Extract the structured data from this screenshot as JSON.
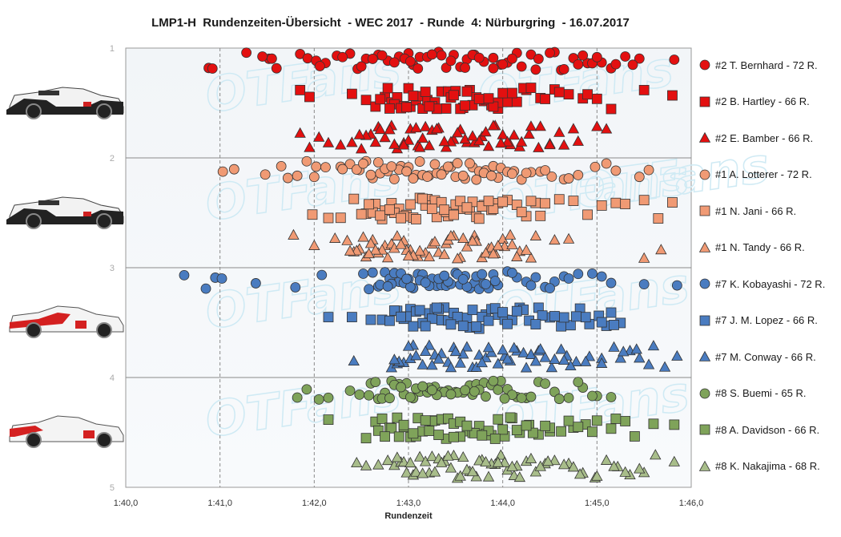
{
  "chart_data": {
    "type": "scatter",
    "title": "LMP1-H  Rundenzeiten-Übersicht  - WEC 2017  - Runde  4: Nürburgring  - 16.07.2017",
    "xlabel": "Rundenzeit",
    "x_ticks": [
      "1:40,0",
      "1:41,0",
      "1:42,0",
      "1:43,0",
      "1:44,0",
      "1:45,0",
      "1:46,0"
    ],
    "xlim_seconds": [
      100,
      106
    ],
    "y_ticks": [
      "1",
      "2",
      "3",
      "4",
      "5"
    ],
    "ylim": [
      1,
      5
    ],
    "grid": "vertical dashed at each second, horizontal solid at each car band",
    "legend_position": "right",
    "watermark": "OTFans",
    "series": [
      {
        "name": "#2 T. Bernhard - 72 R.",
        "car": 2,
        "band_row": 0,
        "marker": "circle",
        "color": "#e31010",
        "laps_seconds": [
          100.88,
          100.92,
          101.28,
          101.52,
          101.6,
          101.85,
          101.93,
          102.02,
          102.12,
          102.24,
          102.38,
          102.46,
          102.55,
          102.68,
          102.78,
          102.9,
          103.0,
          103.05,
          103.12,
          103.2,
          103.32,
          103.4,
          103.48,
          103.55,
          103.62,
          103.7,
          103.8,
          103.9,
          103.98,
          104.05,
          104.15,
          104.3,
          104.38,
          104.55,
          104.62,
          104.75,
          104.9,
          105.05,
          105.15,
          105.3,
          105.45,
          105.82,
          101.55,
          102.06,
          102.62,
          102.96,
          103.35,
          103.68,
          104.0,
          104.5,
          104.85,
          105.38,
          102.5,
          103.1,
          103.6,
          104.2,
          104.8,
          102.85,
          103.45,
          104.35,
          101.45,
          102.3,
          103.25,
          103.75,
          104.95,
          105.2,
          102.72,
          103.9,
          104.65,
          105.0,
          103.02,
          104.1
        ]
      },
      {
        "name": "#2 B. Hartley - 66 R.",
        "car": 2,
        "band_row": 1,
        "marker": "square",
        "color": "#e31010",
        "laps_seconds": [
          101.85,
          101.95,
          102.4,
          102.55,
          102.65,
          102.75,
          102.82,
          102.88,
          102.95,
          103.02,
          103.08,
          103.15,
          103.2,
          103.28,
          103.35,
          103.42,
          103.5,
          103.58,
          103.65,
          103.72,
          103.8,
          103.88,
          103.95,
          104.05,
          104.15,
          104.25,
          104.4,
          104.55,
          104.7,
          104.85,
          105.0,
          105.15,
          105.5,
          105.8,
          102.7,
          102.85,
          103.0,
          103.1,
          103.25,
          103.4,
          103.55,
          103.68,
          103.82,
          103.95,
          104.22,
          104.6,
          102.8,
          102.92,
          103.05,
          103.18,
          103.3,
          103.45,
          103.6,
          103.75,
          103.9,
          104.1,
          104.3,
          102.78,
          102.98,
          103.22,
          103.48,
          103.62,
          103.85,
          104.0,
          104.45,
          104.9
        ]
      },
      {
        "name": "#2 E. Bamber - 66 R.",
        "car": 2,
        "band_row": 2,
        "marker": "triangle",
        "color": "#e31010",
        "laps_seconds": [
          101.85,
          101.95,
          102.05,
          102.15,
          102.28,
          102.4,
          102.5,
          102.6,
          102.68,
          102.75,
          102.82,
          102.88,
          102.95,
          103.02,
          103.1,
          103.18,
          103.25,
          103.32,
          103.4,
          103.48,
          103.55,
          103.62,
          103.7,
          103.78,
          103.85,
          103.92,
          104.0,
          104.08,
          104.18,
          104.28,
          104.38,
          104.5,
          104.65,
          104.8,
          105.0,
          105.1,
          102.55,
          102.7,
          102.85,
          103.0,
          103.15,
          103.3,
          103.45,
          103.6,
          103.75,
          103.9,
          104.05,
          104.2,
          104.4,
          104.6,
          102.65,
          102.8,
          102.95,
          103.08,
          103.22,
          103.38,
          103.52,
          103.68,
          103.82,
          103.98,
          104.12,
          104.3,
          104.5,
          104.75,
          102.48,
          103.12
        ]
      },
      {
        "name": "#1 A. Lotterer - 72 R.",
        "car": 1,
        "band_row": 0,
        "marker": "circle",
        "color": "#f09a74",
        "laps_seconds": [
          101.03,
          101.15,
          101.48,
          101.72,
          101.82,
          101.92,
          102.02,
          102.12,
          102.28,
          102.38,
          102.48,
          102.55,
          102.62,
          102.7,
          102.78,
          102.85,
          102.92,
          103.0,
          103.08,
          103.15,
          103.22,
          103.3,
          103.38,
          103.45,
          103.52,
          103.6,
          103.68,
          103.75,
          103.82,
          103.9,
          103.98,
          104.05,
          104.12,
          104.2,
          104.3,
          104.4,
          104.52,
          104.65,
          104.8,
          104.98,
          105.1,
          105.2,
          105.45,
          105.55,
          101.65,
          102.0,
          102.3,
          102.45,
          102.6,
          102.75,
          102.9,
          103.05,
          103.2,
          103.35,
          103.5,
          103.65,
          103.8,
          103.95,
          104.1,
          104.25,
          104.45,
          104.7,
          102.52,
          102.68,
          102.82,
          102.98,
          103.12,
          103.28,
          103.42,
          103.58,
          103.72,
          103.88
        ]
      },
      {
        "name": "#1 N. Jani - 66 R.",
        "car": 1,
        "band_row": 1,
        "marker": "square",
        "color": "#f09a74",
        "laps_seconds": [
          101.98,
          102.15,
          102.28,
          102.42,
          102.55,
          102.65,
          102.75,
          102.82,
          102.9,
          102.98,
          103.05,
          103.12,
          103.2,
          103.28,
          103.35,
          103.42,
          103.5,
          103.58,
          103.65,
          103.72,
          103.8,
          103.88,
          103.95,
          104.05,
          104.15,
          104.25,
          104.35,
          104.45,
          104.6,
          104.75,
          104.9,
          105.05,
          105.2,
          105.3,
          105.5,
          105.65,
          105.8,
          102.5,
          102.62,
          102.72,
          102.85,
          102.95,
          103.08,
          103.18,
          103.3,
          103.4,
          103.55,
          103.68,
          103.78,
          103.9,
          104.0,
          104.2,
          104.4,
          102.58,
          102.7,
          102.8,
          102.92,
          103.02,
          103.15,
          103.25,
          103.38,
          103.48,
          103.62,
          103.75,
          103.85,
          104.3
        ]
      },
      {
        "name": "#1 N. Tandy - 66 R.",
        "car": 1,
        "band_row": 2,
        "marker": "triangle",
        "color": "#f09a74",
        "laps_seconds": [
          101.78,
          102.0,
          102.22,
          102.35,
          102.42,
          102.48,
          102.55,
          102.62,
          102.68,
          102.75,
          102.82,
          102.88,
          102.95,
          103.02,
          103.1,
          103.18,
          103.25,
          103.32,
          103.4,
          103.48,
          103.55,
          103.62,
          103.7,
          103.78,
          103.85,
          103.92,
          104.0,
          104.08,
          104.18,
          104.35,
          104.55,
          104.7,
          105.5,
          105.68,
          102.45,
          102.6,
          102.72,
          102.85,
          102.98,
          103.12,
          103.28,
          103.42,
          103.58,
          103.72,
          103.88,
          104.02,
          104.15,
          104.3,
          102.52,
          102.65,
          102.78,
          102.92,
          103.05,
          103.22,
          103.38,
          103.52,
          103.68,
          103.82,
          103.95,
          104.1,
          104.25,
          102.38,
          102.58,
          103.0,
          103.45,
          103.9
        ]
      },
      {
        "name": "#7 K. Kobayashi - 72 R.",
        "car": 7,
        "band_row": 0,
        "marker": "circle",
        "color": "#4a7cc0",
        "laps_seconds": [
          100.62,
          100.85,
          100.95,
          101.02,
          101.38,
          101.8,
          102.08,
          102.52,
          102.58,
          102.62,
          102.68,
          102.75,
          102.8,
          102.85,
          102.9,
          102.95,
          103.0,
          103.05,
          103.1,
          103.15,
          103.2,
          103.25,
          103.3,
          103.35,
          103.4,
          103.45,
          103.5,
          103.55,
          103.6,
          103.65,
          103.7,
          103.75,
          103.8,
          103.85,
          103.9,
          103.95,
          104.05,
          104.15,
          104.25,
          104.35,
          104.45,
          104.55,
          104.65,
          104.8,
          104.95,
          105.05,
          105.15,
          105.5,
          105.85,
          102.7,
          102.82,
          102.92,
          103.02,
          103.12,
          103.22,
          103.32,
          103.42,
          103.52,
          103.62,
          103.72,
          103.82,
          103.92,
          104.1,
          104.3,
          104.5,
          104.7,
          102.78,
          102.98,
          103.18,
          103.38,
          103.58,
          103.78
        ]
      },
      {
        "name": "#7 J. M. Lopez - 66 R.",
        "car": 7,
        "band_row": 1,
        "marker": "square",
        "color": "#4a7cc0",
        "laps_seconds": [
          102.15,
          102.4,
          102.6,
          102.72,
          102.8,
          102.88,
          102.95,
          103.02,
          103.08,
          103.15,
          103.22,
          103.28,
          103.35,
          103.42,
          103.48,
          103.55,
          103.62,
          103.68,
          103.75,
          103.82,
          103.88,
          103.95,
          104.02,
          104.1,
          104.18,
          104.28,
          104.38,
          104.5,
          104.62,
          104.72,
          104.82,
          104.92,
          105.02,
          105.15,
          105.25,
          102.85,
          102.98,
          103.12,
          103.25,
          103.38,
          103.52,
          103.65,
          103.78,
          103.92,
          104.05,
          104.22,
          104.42,
          104.65,
          104.88,
          105.1,
          102.92,
          103.05,
          103.18,
          103.32,
          103.45,
          103.58,
          103.72,
          103.85,
          104.0,
          104.15,
          104.35,
          104.55,
          104.78,
          105.05,
          105.18,
          103.3
        ]
      },
      {
        "name": "#7 M. Conway - 66 R.",
        "car": 7,
        "band_row": 2,
        "marker": "triangle",
        "color": "#4a7cc0",
        "laps_seconds": [
          102.42,
          102.82,
          102.88,
          102.95,
          103.02,
          103.08,
          103.15,
          103.22,
          103.28,
          103.35,
          103.42,
          103.48,
          103.55,
          103.62,
          103.68,
          103.75,
          103.82,
          103.88,
          103.95,
          104.02,
          104.08,
          104.15,
          104.22,
          104.3,
          104.38,
          104.45,
          104.52,
          104.62,
          104.68,
          104.78,
          104.92,
          105.05,
          105.18,
          105.25,
          105.35,
          105.45,
          105.55,
          105.72,
          105.85,
          102.9,
          103.05,
          103.18,
          103.32,
          103.45,
          103.58,
          103.72,
          103.85,
          104.0,
          104.12,
          104.25,
          104.4,
          104.55,
          104.72,
          104.88,
          105.05,
          105.28,
          105.42,
          105.6,
          102.85,
          103.0,
          103.25,
          103.5,
          103.78,
          104.05,
          104.35,
          104.65
        ]
      },
      {
        "name": "#8 S. Buemi - 65 R.",
        "car": 8,
        "band_row": 0,
        "marker": "circle",
        "color": "#7fa35a",
        "laps_seconds": [
          101.82,
          101.92,
          102.05,
          102.15,
          102.38,
          102.48,
          102.6,
          102.68,
          102.75,
          102.82,
          102.9,
          102.98,
          103.05,
          103.12,
          103.2,
          103.28,
          103.35,
          103.42,
          103.5,
          103.58,
          103.65,
          103.72,
          103.8,
          103.88,
          103.95,
          104.05,
          104.15,
          104.25,
          104.38,
          104.55,
          104.7,
          104.85,
          105.0,
          105.15,
          102.58,
          102.72,
          102.85,
          102.95,
          103.08,
          103.22,
          103.38,
          103.52,
          103.68,
          103.82,
          103.98,
          104.1,
          104.3,
          104.6,
          104.95,
          102.65,
          102.8,
          102.92,
          103.02,
          103.15,
          103.3,
          103.45,
          103.6,
          103.75,
          103.9,
          104.02,
          104.2,
          104.45,
          104.8,
          103.25,
          103.7
        ]
      },
      {
        "name": "#8 A. Davidson - 66 R.",
        "car": 8,
        "band_row": 1,
        "marker": "square",
        "color": "#7fa35a",
        "laps_seconds": [
          102.15,
          102.55,
          102.65,
          102.72,
          102.8,
          102.88,
          102.95,
          103.02,
          103.08,
          103.15,
          103.22,
          103.28,
          103.35,
          103.42,
          103.48,
          103.55,
          103.62,
          103.68,
          103.75,
          103.82,
          103.88,
          103.95,
          104.02,
          104.1,
          104.18,
          104.28,
          104.38,
          104.5,
          104.62,
          104.75,
          104.88,
          105.0,
          105.15,
          105.3,
          105.6,
          105.82,
          102.68,
          102.82,
          102.95,
          103.1,
          103.25,
          103.4,
          103.55,
          103.7,
          103.85,
          104.0,
          104.15,
          104.32,
          104.5,
          104.7,
          104.95,
          105.2,
          102.75,
          102.9,
          103.05,
          103.18,
          103.32,
          103.48,
          103.62,
          103.78,
          103.92,
          104.08,
          104.25,
          104.45,
          104.8,
          105.4
        ]
      },
      {
        "name": "#8 K. Nakajima - 68 R.",
        "car": 8,
        "band_row": 2,
        "marker": "triangle",
        "color": "#a8bd8a",
        "laps_seconds": [
          102.45,
          102.55,
          102.68,
          102.78,
          102.85,
          102.92,
          102.98,
          103.05,
          103.12,
          103.18,
          103.25,
          103.32,
          103.38,
          103.45,
          103.52,
          103.58,
          103.65,
          103.72,
          103.78,
          103.85,
          103.92,
          103.98,
          104.05,
          104.12,
          104.18,
          104.25,
          104.35,
          104.45,
          104.55,
          104.7,
          104.85,
          104.98,
          105.1,
          105.22,
          105.35,
          105.5,
          105.62,
          105.82,
          102.95,
          103.08,
          103.22,
          103.35,
          103.48,
          103.62,
          103.75,
          103.88,
          104.02,
          104.15,
          104.3,
          104.48,
          104.65,
          104.82,
          105.0,
          105.18,
          105.3,
          105.45,
          102.88,
          103.02,
          103.15,
          103.28,
          103.42,
          103.55,
          103.68,
          103.82,
          103.95,
          104.1,
          104.4,
          104.75
        ]
      }
    ]
  }
}
